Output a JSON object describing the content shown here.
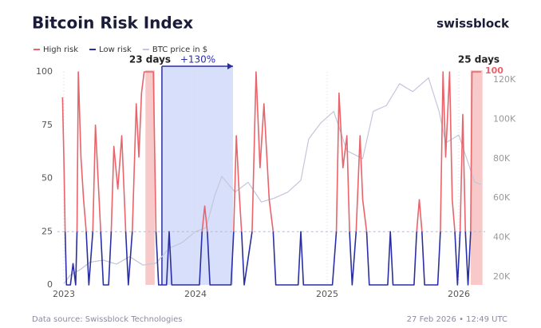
{
  "chart_data": {
    "type": "risk-line",
    "title": "Bitcoin Risk Index",
    "brand": "swissblock",
    "source": "Data source: Swissblock Technologies",
    "timestamp": "27 Feb 2026 • 12:49 UTC",
    "xlim": [
      2022.95,
      2026.2
    ],
    "xticks": [
      2023,
      2024,
      2025,
      2026
    ],
    "ylim": [
      0,
      100
    ],
    "yticks": [
      0,
      25,
      50,
      75,
      100
    ],
    "y2lim": [
      15950,
      124050
    ],
    "y2ticks": [
      {
        "value": 20000,
        "label": "20K"
      },
      {
        "value": 40000,
        "label": "40K"
      },
      {
        "value": 60000,
        "label": "60K"
      },
      {
        "value": 80000,
        "label": "80K"
      },
      {
        "value": 100000,
        "label": "100K"
      },
      {
        "value": 120000,
        "label": "120K"
      }
    ],
    "reference_line": 25,
    "x": [
      2022.99,
      2023.0,
      2023.01,
      2023.02,
      2023.05,
      2023.07,
      2023.09,
      2023.1,
      2023.11,
      2023.13,
      2023.15,
      2023.17,
      2023.19,
      2023.22,
      2023.24,
      2023.26,
      2023.28,
      2023.3,
      2023.34,
      2023.36,
      2023.38,
      2023.41,
      2023.44,
      2023.47,
      2023.49,
      2023.52,
      2023.55,
      2023.57,
      2023.59,
      2023.61,
      2023.68,
      2023.7,
      2023.72,
      2023.78,
      2023.8,
      2023.82,
      2024.03,
      2024.05,
      2024.07,
      2024.09,
      2024.11,
      2024.27,
      2024.29,
      2024.31,
      2024.33,
      2024.35,
      2024.37,
      2024.43,
      2024.46,
      2024.49,
      2024.52,
      2024.56,
      2024.59,
      2024.61,
      2024.78,
      2024.8,
      2024.82,
      2025.04,
      2025.07,
      2025.09,
      2025.12,
      2025.15,
      2025.17,
      2025.19,
      2025.22,
      2025.25,
      2025.27,
      2025.3,
      2025.32,
      2025.46,
      2025.48,
      2025.5,
      2025.66,
      2025.68,
      2025.7,
      2025.72,
      2025.74,
      2025.84,
      2025.86,
      2025.88,
      2025.9,
      2025.93,
      2025.95,
      2025.97,
      2025.99,
      2026.01,
      2026.03,
      2026.05,
      2026.07,
      2026.09,
      2026.1,
      2026.17
    ],
    "series": [
      {
        "name": "High risk",
        "color": "#e9636a",
        "values": [
          88,
          60,
          25,
          null,
          null,
          null,
          null,
          25,
          100,
          60,
          40,
          25,
          null,
          25,
          75,
          50,
          25,
          null,
          null,
          25,
          65,
          45,
          70,
          25,
          null,
          25,
          85,
          60,
          90,
          100,
          100,
          25,
          null,
          null,
          25,
          null,
          null,
          25,
          37,
          25,
          null,
          null,
          25,
          70,
          45,
          25,
          null,
          25,
          100,
          55,
          85,
          40,
          25,
          null,
          null,
          25,
          null,
          null,
          25,
          90,
          55,
          70,
          25,
          null,
          25,
          70,
          40,
          25,
          null,
          null,
          25,
          null,
          null,
          25,
          40,
          25,
          null,
          null,
          25,
          100,
          60,
          100,
          40,
          25,
          null,
          25,
          80,
          25,
          null,
          25,
          100,
          100
        ]
      },
      {
        "name": "Low risk",
        "color": "#2a2ea3",
        "values": [
          null,
          null,
          25,
          0,
          0,
          10,
          0,
          25,
          null,
          null,
          null,
          25,
          0,
          25,
          null,
          null,
          25,
          0,
          0,
          25,
          null,
          null,
          null,
          25,
          0,
          25,
          null,
          null,
          null,
          null,
          null,
          25,
          0,
          0,
          25,
          0,
          0,
          25,
          null,
          25,
          0,
          0,
          25,
          null,
          null,
          25,
          0,
          25,
          null,
          null,
          null,
          null,
          25,
          0,
          0,
          25,
          0,
          0,
          25,
          null,
          null,
          null,
          25,
          0,
          25,
          null,
          null,
          25,
          0,
          0,
          25,
          0,
          0,
          25,
          null,
          25,
          0,
          0,
          25,
          null,
          null,
          null,
          null,
          25,
          0,
          25,
          null,
          25,
          0,
          25,
          null,
          null
        ]
      },
      {
        "name": "BTC price in $",
        "color": "#c3c6dc",
        "axis": "y2",
        "x": [
          2023.0,
          2023.05,
          2023.12,
          2023.2,
          2023.3,
          2023.4,
          2023.5,
          2023.6,
          2023.7,
          2023.8,
          2023.9,
          2024.0,
          2024.08,
          2024.15,
          2024.2,
          2024.3,
          2024.4,
          2024.5,
          2024.6,
          2024.7,
          2024.8,
          2024.86,
          2024.95,
          2025.05,
          2025.15,
          2025.27,
          2025.35,
          2025.45,
          2025.55,
          2025.65,
          2025.77,
          2025.85,
          2025.9,
          2026.0,
          2026.08,
          2026.12,
          2026.17
        ],
        "values": [
          16600,
          21000,
          23500,
          27500,
          28500,
          26500,
          30300,
          26000,
          27000,
          34500,
          37500,
          43000,
          45000,
          62000,
          71000,
          63000,
          68000,
          58000,
          60000,
          63000,
          69000,
          90000,
          98000,
          104000,
          84000,
          80000,
          104000,
          107000,
          118000,
          114000,
          121000,
          104000,
          88000,
          92000,
          76000,
          68000,
          67000
        ]
      }
    ],
    "highlights": [
      {
        "x": [
          2023.62,
          2023.69
        ],
        "color": "#f6c4c3"
      },
      {
        "x": [
          2023.745,
          2024.285
        ],
        "color": "#d4dbfa"
      },
      {
        "x": [
          2026.09,
          2026.18
        ],
        "color": "#f6c4c3"
      }
    ],
    "annotations": [
      "23 days",
      "+130%",
      "25 days",
      "100"
    ]
  }
}
